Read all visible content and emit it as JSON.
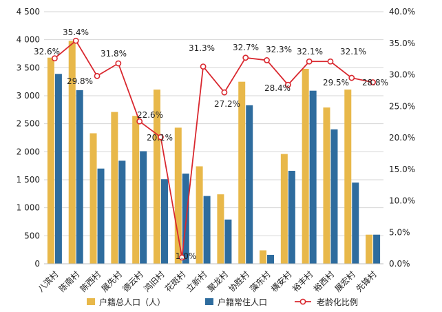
{
  "chart_data": {
    "type": "bar+line",
    "categories": [
      "八滨村",
      "陈南村",
      "陈西村",
      "展先村",
      "德云村",
      "鸿旧村",
      "花斑村",
      "立新村",
      "聚龙村",
      "协胜村",
      "藻东村",
      "横安村",
      "裕丰村",
      "裕西村",
      "展宏村",
      "先锋村"
    ],
    "series": [
      {
        "name": "户籍总人口（人）",
        "type": "bar",
        "axis": "left",
        "color": "#E8B84A",
        "values": [
          3680,
          3980,
          2330,
          2710,
          2640,
          3110,
          2430,
          1740,
          1240,
          3250,
          240,
          1960,
          3480,
          2790,
          3110,
          520
        ]
      },
      {
        "name": "户籍常住人口",
        "type": "bar",
        "axis": "left",
        "color": "#2E6C9E",
        "values": [
          3390,
          3100,
          1700,
          1840,
          2010,
          1510,
          1610,
          1210,
          790,
          2830,
          160,
          1660,
          3090,
          2400,
          1450,
          520
        ]
      },
      {
        "name": "老龄化比例",
        "type": "line",
        "axis": "right",
        "color": "#D9282F",
        "values": [
          32.6,
          35.4,
          29.8,
          31.8,
          22.6,
          20.1,
          1.0,
          31.3,
          27.2,
          32.7,
          32.3,
          28.4,
          32.1,
          32.1,
          29.5,
          28.8
        ],
        "labels": [
          "32.6%",
          "35.4%",
          "29.8%",
          "31.8%",
          "22.6%",
          "20.1%",
          "1.0%",
          "31.3%",
          "27.2%",
          "32.7%",
          "32.3%",
          "28.4%",
          "32.1%",
          "32.1%",
          "29.5%",
          "28.8%"
        ]
      }
    ],
    "y_left": {
      "ylim": [
        0,
        4500
      ],
      "ticks": [
        "0",
        "500",
        "1 000",
        "1 500",
        "2 000",
        "2 500",
        "3 000",
        "3 500",
        "4 000",
        "4 500"
      ]
    },
    "y_right": {
      "ylim": [
        0,
        40
      ],
      "ticks": [
        "0.0%",
        "5.0%",
        "10.0%",
        "15.0%",
        "20.0%",
        "25.0%",
        "30.0%",
        "35.0%",
        "40.0%"
      ]
    },
    "grid": true,
    "legend": {
      "placement": "bottom",
      "items": [
        {
          "label": "户籍总人口（人）",
          "color": "#E8B84A",
          "kind": "bar"
        },
        {
          "label": "户籍常住人口",
          "color": "#2E6C9E",
          "kind": "bar"
        },
        {
          "label": "老龄化比例",
          "color": "#D9282F",
          "kind": "line"
        }
      ]
    }
  }
}
